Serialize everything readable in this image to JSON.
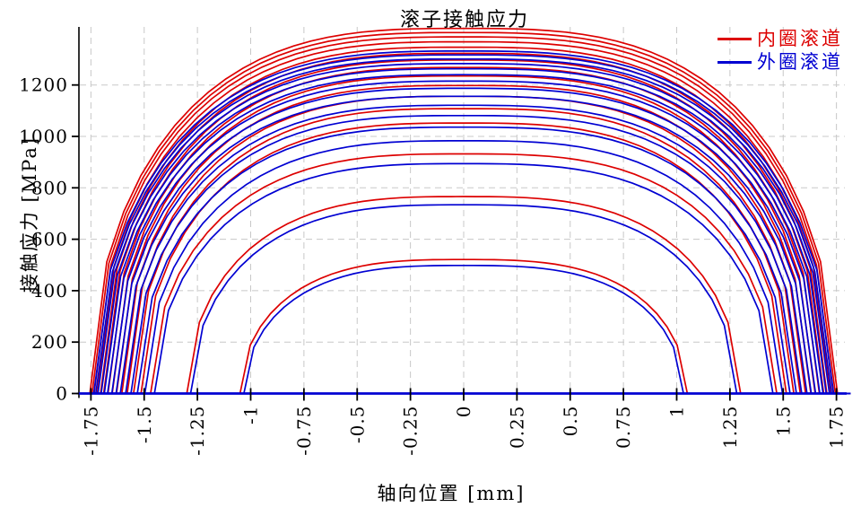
{
  "chart_data": {
    "type": "line",
    "title": "滚子接触应力",
    "xlabel": "轴向位置 [mm]",
    "ylabel": "接触应力 [MPa]",
    "xlim": [
      -1.815,
      1.815
    ],
    "ylim": [
      0,
      1428
    ],
    "x_ticks": [
      -1.75,
      -1.5,
      -1.25,
      -1,
      -0.75,
      -0.5,
      -0.25,
      0,
      0.25,
      0.5,
      0.75,
      1,
      1.25,
      1.5,
      1.75
    ],
    "x_tick_labels": [
      "-1.75",
      "-1.5",
      "-1.25",
      "-1",
      "-0.75",
      "-0.5",
      "-0.25",
      "0",
      "0.25",
      "0.5",
      "0.75",
      "1",
      "1.25",
      "1.5",
      "1.75"
    ],
    "y_ticks": [
      0,
      200,
      400,
      600,
      800,
      1000,
      1200
    ],
    "y_tick_labels": [
      "0",
      "200",
      "400",
      "600",
      "800",
      "1000",
      "1200"
    ],
    "grid": "dashed",
    "legend_position": "top-right-inside",
    "legend": [
      {
        "label": "内圈滚道",
        "series": "inner",
        "color": "#dd0000"
      },
      {
        "label": "外圈滚道",
        "series": "outer",
        "color": "#0000d2"
      }
    ],
    "profile_model": "stress(x) = peak * sqrt(1 - |x/half_width|^3) for |x| <= half_width, else 0",
    "rollers": [
      {
        "half_width_mm": 1.755,
        "outer_half_width_mm": 1.737,
        "inner_peak_mpa": 1420,
        "outer_peak_mpa": 1332
      },
      {
        "half_width_mm": 1.745,
        "outer_half_width_mm": 1.727,
        "inner_peak_mpa": 1404,
        "outer_peak_mpa": 1317
      },
      {
        "half_width_mm": 1.735,
        "outer_half_width_mm": 1.717,
        "inner_peak_mpa": 1387,
        "outer_peak_mpa": 1301
      },
      {
        "half_width_mm": 1.72,
        "outer_half_width_mm": 1.702,
        "inner_peak_mpa": 1368,
        "outer_peak_mpa": 1283
      },
      {
        "half_width_mm": 1.705,
        "outer_half_width_mm": 1.687,
        "inner_peak_mpa": 1347,
        "outer_peak_mpa": 1263
      },
      {
        "half_width_mm": 1.69,
        "outer_half_width_mm": 1.672,
        "inner_peak_mpa": 1323,
        "outer_peak_mpa": 1240
      },
      {
        "half_width_mm": 1.67,
        "outer_half_width_mm": 1.652,
        "inner_peak_mpa": 1297,
        "outer_peak_mpa": 1215
      },
      {
        "half_width_mm": 1.65,
        "outer_half_width_mm": 1.632,
        "inner_peak_mpa": 1268,
        "outer_peak_mpa": 1187
      },
      {
        "half_width_mm": 1.63,
        "outer_half_width_mm": 1.612,
        "inner_peak_mpa": 1235,
        "outer_peak_mpa": 1156
      },
      {
        "half_width_mm": 1.605,
        "outer_half_width_mm": 1.587,
        "inner_peak_mpa": 1198,
        "outer_peak_mpa": 1121
      },
      {
        "half_width_mm": 1.58,
        "outer_half_width_mm": 1.562,
        "inner_peak_mpa": 1156,
        "outer_peak_mpa": 1081
      },
      {
        "half_width_mm": 1.55,
        "outer_half_width_mm": 1.532,
        "inner_peak_mpa": 1108,
        "outer_peak_mpa": 1036
      },
      {
        "half_width_mm": 1.515,
        "outer_half_width_mm": 1.497,
        "inner_peak_mpa": 1052,
        "outer_peak_mpa": 983
      },
      {
        "half_width_mm": 1.47,
        "outer_half_width_mm": 1.452,
        "inner_peak_mpa": 932,
        "outer_peak_mpa": 894
      },
      {
        "half_width_mm": 1.3,
        "outer_half_width_mm": 1.282,
        "inner_peak_mpa": 766,
        "outer_peak_mpa": 734
      },
      {
        "half_width_mm": 1.05,
        "outer_half_width_mm": 1.032,
        "inner_peak_mpa": 521,
        "outer_peak_mpa": 498
      }
    ],
    "colors": {
      "inner_series": "#dd0000",
      "outer_series": "#0000d2",
      "grid": "#c8c8c8",
      "axis": "#000000",
      "background": "#ffffff"
    }
  }
}
